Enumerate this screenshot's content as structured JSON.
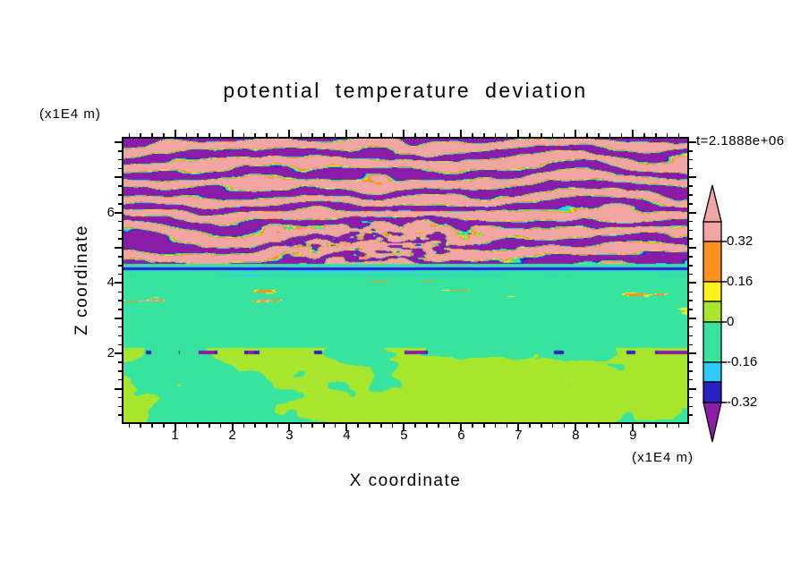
{
  "title": "potential temperature deviation",
  "annotations": {
    "time_label": "t=2.1888e+06",
    "z_axis_unit": "(x1E4 m)",
    "x_axis_unit": "(x1E4 m)"
  },
  "axes": {
    "x": {
      "label": "X coordinate",
      "major_ticks": [
        1,
        2,
        3,
        4,
        5,
        6,
        7,
        8,
        9
      ],
      "tick_labels": [
        "1",
        "2",
        "3",
        "4",
        "5",
        "6",
        "7",
        "8",
        "9"
      ],
      "minor_step": 0.2,
      "minor_start": 0.2,
      "minor_end": 9.8
    },
    "z": {
      "label": "Z coordinate",
      "major_ticks": [
        1,
        2,
        3,
        4,
        5,
        6,
        7,
        8
      ],
      "labeled_ticks": [
        2,
        4,
        6
      ],
      "tick_labels": [
        "2",
        "4",
        "6"
      ],
      "minor_step": 0.25,
      "minor_start": 0.25,
      "minor_end": 8.0
    }
  },
  "colorbar": {
    "labels": [
      "0.32",
      "0.16",
      "0",
      "-0.16",
      "-0.32"
    ],
    "levels": [
      0.32,
      0.16,
      0,
      -0.16,
      -0.32
    ],
    "segments": [
      {
        "name": "pink",
        "color": "#F2A6A3",
        "range": "> 0.32"
      },
      {
        "name": "orange",
        "color": "#FF8F1F",
        "range": "0.16 to 0.32"
      },
      {
        "name": "yellow",
        "color": "#FFF01E",
        "range": "0.08 to 0.16"
      },
      {
        "name": "green-yellow",
        "color": "#A8E62E",
        "range": "0 to 0.08"
      },
      {
        "name": "spring-green",
        "color": "#38E39E",
        "range": "-0.16 to 0"
      },
      {
        "name": "cyan",
        "color": "#2EC9FF",
        "range": "-0.24 to -0.16"
      },
      {
        "name": "dark-blue",
        "color": "#2A22C2",
        "range": "-0.32 to -0.24"
      },
      {
        "name": "purple",
        "color": "#8A1CA8",
        "range": "< -0.32"
      }
    ]
  },
  "chart_data": {
    "type": "filled-contour-heatmap",
    "title": "potential temperature deviation",
    "xlabel": "X coordinate",
    "ylabel": "Z coordinate",
    "x_unit": "(x1E4 m)",
    "z_unit": "(x1E4 m)",
    "time_annotation": "t=2.1888e+06",
    "xlim": [
      0,
      10
    ],
    "zlim": [
      0,
      8
    ],
    "xlim_render": [
      0.1,
      9.95
    ],
    "zlim_render": [
      0.05,
      8.1
    ],
    "contour_levels": [
      -0.32,
      -0.24,
      -0.16,
      0,
      0.08,
      0.16,
      0.32
    ],
    "palette": [
      {
        "min": 0.32,
        "color": "#F2A6A3",
        "name": "pink"
      },
      {
        "min": 0.16,
        "color": "#FF8F1F",
        "name": "orange"
      },
      {
        "min": 0.08,
        "color": "#FFF01E",
        "name": "yellow"
      },
      {
        "min": 0.0,
        "color": "#A8E62E",
        "name": "green-yellow"
      },
      {
        "min": -0.16,
        "color": "#38E39E",
        "name": "spring-green"
      },
      {
        "min": -0.24,
        "color": "#2EC9FF",
        "name": "cyan"
      },
      {
        "min": -0.32,
        "color": "#2A22C2",
        "name": "dark-blue"
      },
      {
        "min": -9,
        "color": "#8A1CA8",
        "name": "purple"
      }
    ],
    "field_regions": [
      {
        "z_range": [
          4.55,
          8.1
        ],
        "description": "wavy horizontal billow bands alternating strong positive (pink > 0.32) and strong negative (purple < -0.32) deviation, with thin rainbow contour fringes at band edges and enhanced small-scale mixing near x=3.5-5.5, z=4.7-5.6"
      },
      {
        "z_range": [
          4.18,
          4.55
        ],
        "description": "thin strong-negative horizontal layer spanning full width: dark-blue core stripe with cyan fringes, plus a weaker cyan line just below"
      },
      {
        "z_range": [
          2.15,
          4.18
        ],
        "description": "near-zero slightly negative background (spring green) with sparse thin positive filaments (yellow/orange) around z=3.3-4.0"
      },
      {
        "z_range": [
          0.05,
          2.15
        ],
        "description": "large slowly swirling convective blobs alternating slightly positive (green-yellow) and slightly negative (spring green); thin broken dark-blue/purple dashed line near z=2.05"
      }
    ],
    "render_params": {
      "seed": 7.31,
      "stripe_k": 4.1,
      "stripe_phase": 0.3,
      "stripe_bias": 0.12
    }
  }
}
